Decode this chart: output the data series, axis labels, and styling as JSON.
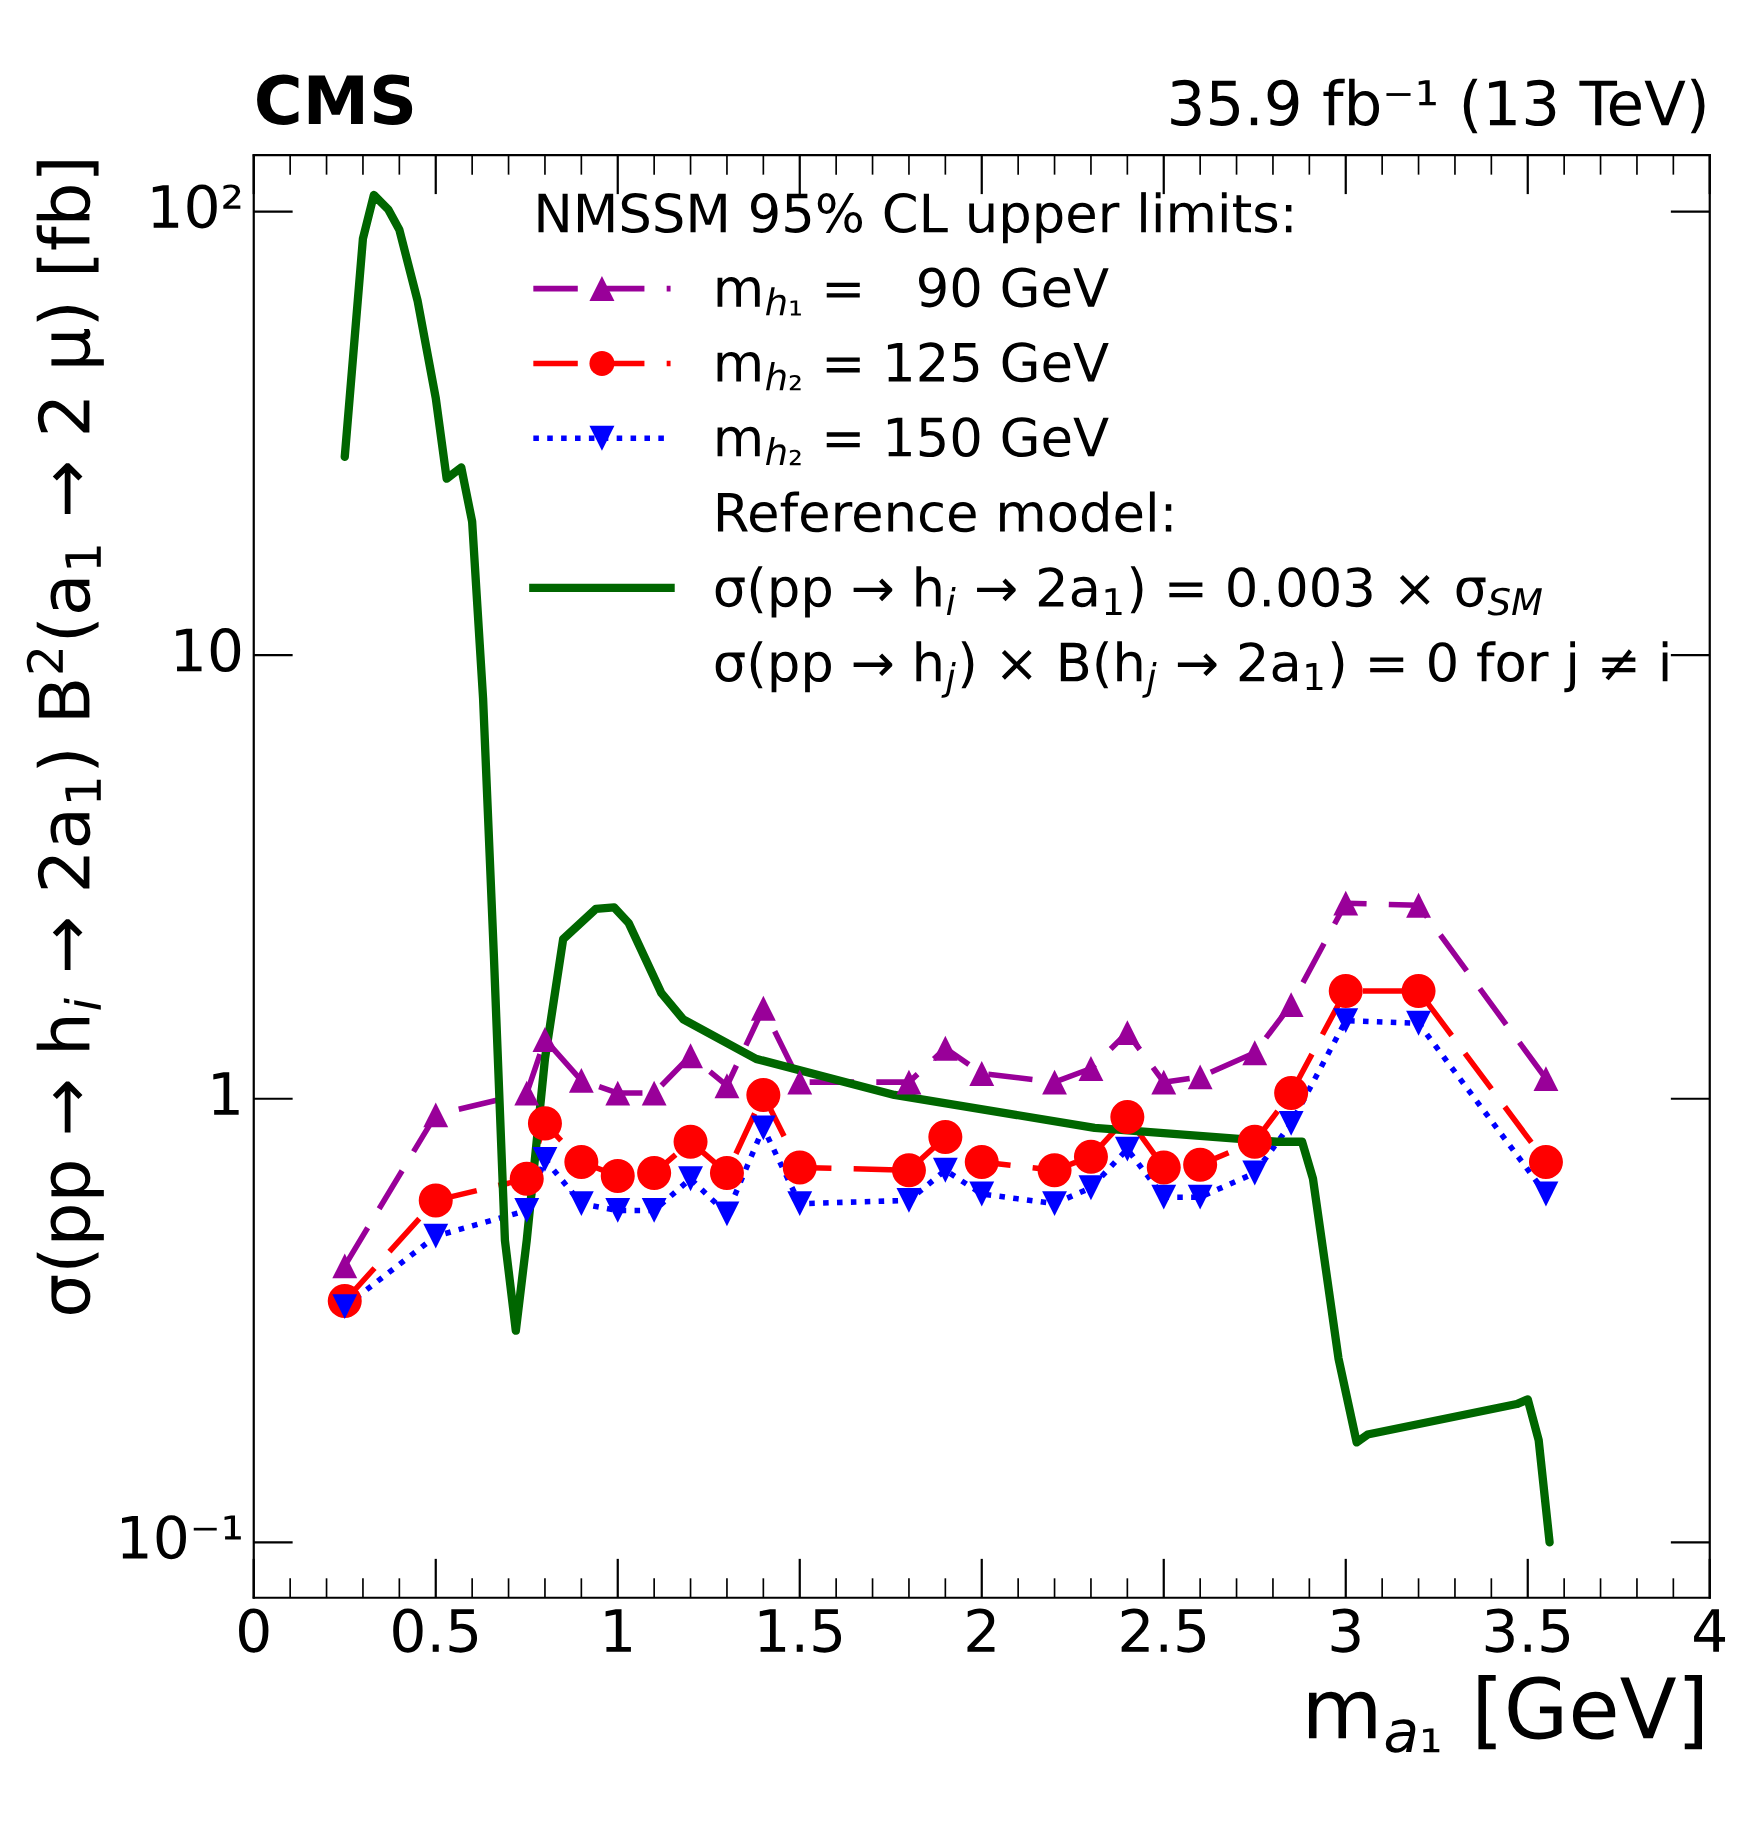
{
  "chart_data": {
    "type": "line",
    "title": "CMS",
    "subtitle": "35.9 fb⁻¹ (13 TeV)",
    "xlabel": "m$_{a₁}$ [GeV]",
    "ylabel": "σ(pp → h$_{i}$ → 2a$_{1}$) B$^{2}$(a$_{1}$ → 2 μ) [fb]",
    "legend_title": "NMSSM 95% CL upper limits:",
    "annotations": [
      "Reference model:",
      "σ(pp → h$_{j}$) × B(h$_{j}$ → 2a$_{1}$) = 0 for j ≠ i"
    ],
    "x": [
      0.25,
      0.5,
      0.75,
      0.8,
      0.9,
      1.0,
      1.1,
      1.2,
      1.3,
      1.4,
      1.5,
      1.8,
      1.9,
      2.0,
      2.2,
      2.3,
      2.4,
      2.5,
      2.6,
      2.75,
      2.85,
      3.0,
      3.2,
      3.55
    ],
    "series": [
      {
        "name": "m$_{h₁}$ =   90 GeV",
        "color": "#990099",
        "marker": "triangle",
        "line_style": "dashed",
        "values": [
          0.42,
          0.92,
          1.03,
          1.36,
          1.1,
          1.03,
          1.03,
          1.25,
          1.07,
          1.6,
          1.09,
          1.09,
          1.3,
          1.14,
          1.09,
          1.17,
          1.41,
          1.09,
          1.12,
          1.27,
          1.63,
          2.76,
          2.73,
          1.11
        ]
      },
      {
        "name": "m$_{h₂}$ = 125 GeV",
        "color": "#ff0000",
        "marker": "circle",
        "line_style": "dashed",
        "values": [
          0.35,
          0.59,
          0.66,
          0.88,
          0.72,
          0.67,
          0.68,
          0.8,
          0.68,
          1.02,
          0.7,
          0.69,
          0.82,
          0.72,
          0.69,
          0.74,
          0.91,
          0.7,
          0.71,
          0.8,
          1.03,
          1.75,
          1.75,
          0.72
        ]
      },
      {
        "name": "m$_{h₂}$ = 150 GeV",
        "color": "#0000ff",
        "marker": "triangle_down",
        "line_style": "dotted",
        "values": [
          0.34,
          0.49,
          0.56,
          0.73,
          0.58,
          0.56,
          0.56,
          0.66,
          0.55,
          0.86,
          0.58,
          0.59,
          0.69,
          0.61,
          0.58,
          0.63,
          0.77,
          0.6,
          0.6,
          0.68,
          0.88,
          1.5,
          1.48,
          0.61
        ]
      },
      {
        "name": "σ(pp → h$_{i}$ → 2a$_{1}$) = 0.003 × σ$_{SM}$",
        "color": "#006600",
        "marker": "none",
        "line_style": "solid",
        "x": [
          0.25,
          0.3,
          0.33,
          0.37,
          0.4,
          0.45,
          0.5,
          0.53,
          0.57,
          0.6,
          0.63,
          0.66,
          0.69,
          0.72,
          0.75,
          0.8,
          0.85,
          0.94,
          0.99,
          1.03,
          1.12,
          1.18,
          1.38,
          1.76,
          2.31,
          2.81,
          2.88,
          2.91,
          2.98,
          3.03,
          3.06,
          3.47,
          3.5,
          3.53,
          3.56
        ],
        "values": [
          28,
          87,
          109,
          101,
          91,
          63,
          38,
          25,
          26.5,
          20,
          8.0,
          2.07,
          0.48,
          0.3,
          0.48,
          1.23,
          2.29,
          2.68,
          2.7,
          2.49,
          1.73,
          1.51,
          1.23,
          1.02,
          0.86,
          0.8,
          0.8,
          0.66,
          0.26,
          0.168,
          0.175,
          0.205,
          0.21,
          0.17,
          0.1
        ]
      }
    ],
    "log": "y",
    "xlim": [
      0,
      4
    ],
    "ylim": [
      0.075,
      134
    ],
    "xticks": [
      0,
      0.5,
      1,
      1.5,
      2,
      2.5,
      3,
      3.5,
      4
    ],
    "yticks": [
      {
        "value": 0.1,
        "label": "10⁻¹"
      },
      1,
      10,
      {
        "value": 100,
        "label": "10²"
      }
    ],
    "grid": false,
    "legend": "top right"
  }
}
